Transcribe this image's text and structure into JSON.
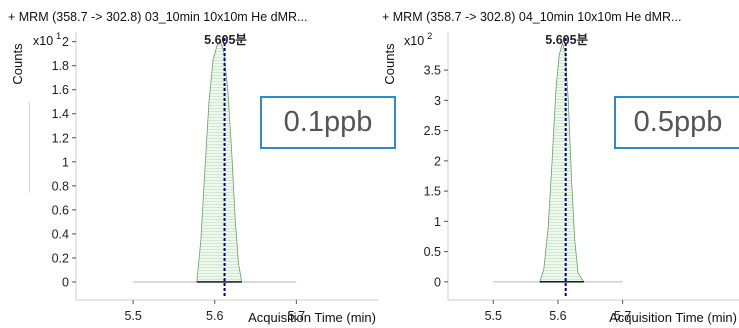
{
  "chart_data": [
    {
      "type": "area",
      "title": "+ MRM (358.7 -> 302.8) 03_10min 10x10m He dMR...",
      "xlabel": "Acquisition Time (min)",
      "ylabel": "Counts",
      "y_multiplier": "x10",
      "y_exponent": "1",
      "xlim": [
        5.43,
        5.8
      ],
      "ylim": [
        -0.15,
        2.08
      ],
      "x_ticks": [
        "5.5",
        "5.6",
        "5.7"
      ],
      "y_ticks": [
        "0",
        "0.2",
        "0.4",
        "0.6",
        "0.8",
        "1",
        "1.2",
        "1.4",
        "1.6",
        "1.8",
        "2"
      ],
      "peak_label": "5.605분",
      "peak_x": 5.612,
      "baseline_x": [
        5.5,
        5.7
      ],
      "series": [
        {
          "x": [
            5.578,
            5.583,
            5.588,
            5.593,
            5.598,
            5.603,
            5.607,
            5.611,
            5.616,
            5.621,
            5.625,
            5.629,
            5.633
          ],
          "y": [
            0,
            0.35,
            0.95,
            1.5,
            1.85,
            1.97,
            2.0,
            1.92,
            1.6,
            1.05,
            0.52,
            0.16,
            0
          ]
        }
      ],
      "annotation": "0.1ppb",
      "grid": false
    },
    {
      "type": "area",
      "title": "+ MRM (358.7 -> 302.8) 04_10min 10x10m He dMR...",
      "xlabel": "Acquisition Time (min)",
      "ylabel": "Counts",
      "y_multiplier": "x10",
      "y_exponent": "2",
      "xlim": [
        5.43,
        5.88
      ],
      "ylim": [
        -0.3,
        4.13
      ],
      "x_ticks": [
        "5.5",
        "5.6",
        "5.7"
      ],
      "y_ticks": [
        "0",
        "0.5",
        "1",
        "1.5",
        "2",
        "2.5",
        "3",
        "3.5"
      ],
      "peak_label": "5.605분",
      "peak_x": 5.612,
      "baseline_x": [
        5.5,
        5.7
      ],
      "series": [
        {
          "x": [
            5.572,
            5.578,
            5.585,
            5.591,
            5.597,
            5.602,
            5.607,
            5.611,
            5.616,
            5.621,
            5.626,
            5.631,
            5.64
          ],
          "y": [
            0,
            0.2,
            0.9,
            2.0,
            3.2,
            3.75,
            3.95,
            3.8,
            3.0,
            1.7,
            0.7,
            0.15,
            0
          ]
        }
      ],
      "annotation": "0.5ppb",
      "grid": false
    }
  ]
}
